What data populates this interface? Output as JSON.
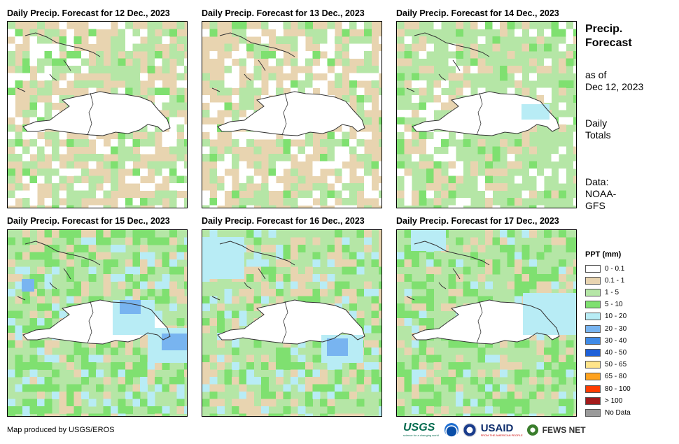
{
  "panels": [
    {
      "title": "Daily Precip. Forecast for 12 Dec., 2023",
      "dominant_class": "0.1 - 1"
    },
    {
      "title": "Daily Precip. Forecast for 13 Dec., 2023",
      "dominant_class": "0.1 - 1"
    },
    {
      "title": "Daily Precip. Forecast for 14 Dec., 2023",
      "dominant_class": "1 - 5"
    },
    {
      "title": "Daily Precip. Forecast for 15 Dec., 2023",
      "dominant_class": "1 - 5"
    },
    {
      "title": "Daily Precip. Forecast for 16 Dec., 2023",
      "dominant_class": "1 - 5"
    },
    {
      "title": "Daily Precip. Forecast for 17 Dec., 2023",
      "dominant_class": "1 - 5"
    }
  ],
  "side": {
    "title_line1": "Precip.",
    "title_line2": "Forecast",
    "asof_line1": "as of",
    "asof_line2": "Dec 12, 2023",
    "totals_line1": "Daily",
    "totals_line2": "Totals",
    "data_line1": "Data:",
    "data_line2": "NOAA-",
    "data_line3": "GFS"
  },
  "legend": {
    "title": "PPT (mm)",
    "items": [
      {
        "label": "0 - 0.1",
        "color": "#ffffff"
      },
      {
        "label": "0.1 - 1",
        "color": "#e8d4b0"
      },
      {
        "label": "1 - 5",
        "color": "#b5e6a6"
      },
      {
        "label": "5 - 10",
        "color": "#7fe070"
      },
      {
        "label": "10 - 20",
        "color": "#b8ecf5"
      },
      {
        "label": "20 - 30",
        "color": "#78b4f0"
      },
      {
        "label": "30 - 40",
        "color": "#3f8ae6"
      },
      {
        "label": "40 - 50",
        "color": "#1e60d8"
      },
      {
        "label": "50 - 65",
        "color": "#ffe48a"
      },
      {
        "label": "65 - 80",
        "color": "#ffa21e"
      },
      {
        "label": "80 - 100",
        "color": "#ff3c00"
      },
      {
        "label": "> 100",
        "color": "#a31a1a"
      },
      {
        "label": "No Data",
        "color": "#9a9a9a"
      }
    ]
  },
  "credit": "Map produced by USGS/EROS",
  "logos": {
    "usgs": "USGS",
    "usgs_tag": "science for a changing world",
    "usaid": "USAID",
    "usaid_tag": "FROM THE AMERICAN PEOPLE",
    "fews": "FEWS NET"
  }
}
